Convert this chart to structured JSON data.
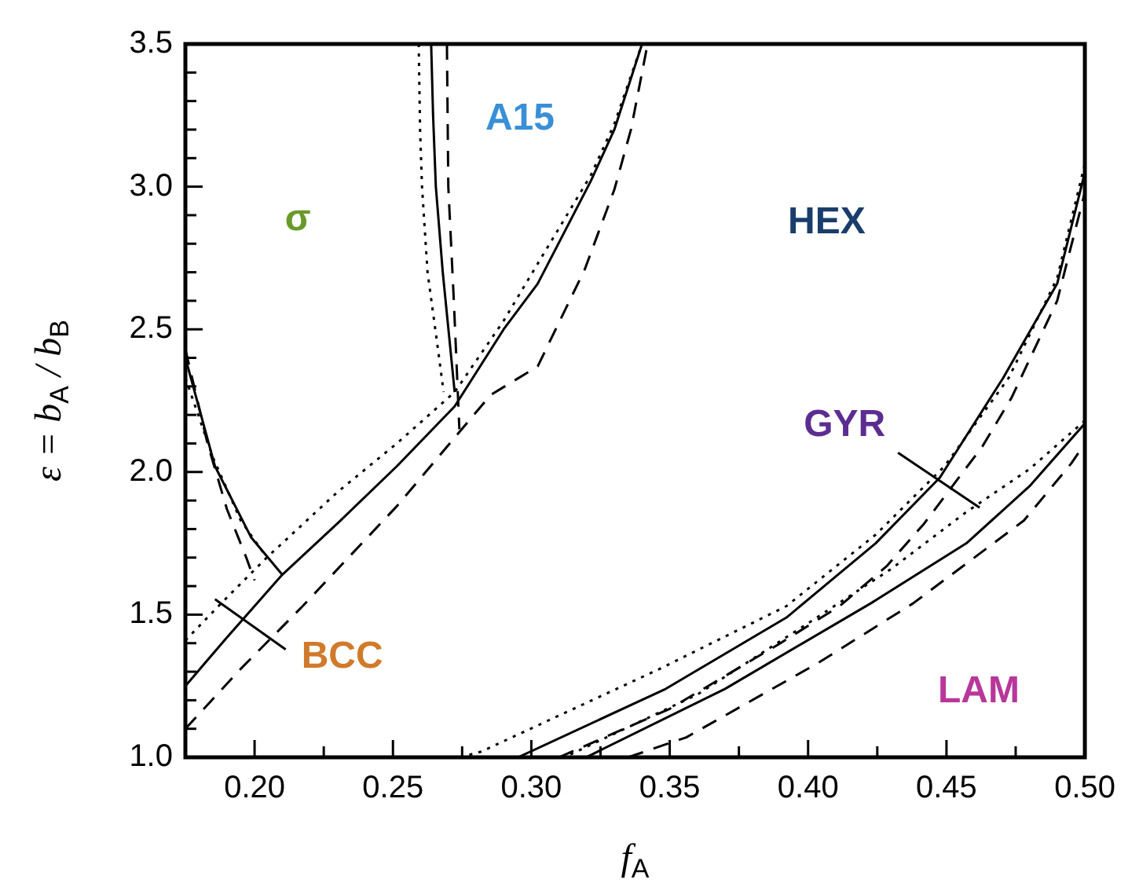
{
  "chart_data": {
    "type": "line",
    "xlabel": "f$_{A}$",
    "ylabel": "ε = b$_{A}$ / b$_{B}$",
    "xlim": [
      0.175,
      0.5
    ],
    "ylim": [
      1.0,
      3.5
    ],
    "xticks": [
      {
        "value": 0.175,
        "label": null
      },
      {
        "value": 0.2,
        "label": "0.20"
      },
      {
        "value": 0.225,
        "label": null
      },
      {
        "value": 0.25,
        "label": "0.25"
      },
      {
        "value": 0.275,
        "label": null
      },
      {
        "value": 0.3,
        "label": "0.30"
      },
      {
        "value": 0.325,
        "label": null
      },
      {
        "value": 0.35,
        "label": "0.35"
      },
      {
        "value": 0.375,
        "label": null
      },
      {
        "value": 0.4,
        "label": "0.40"
      },
      {
        "value": 0.425,
        "label": null
      },
      {
        "value": 0.45,
        "label": "0.45"
      },
      {
        "value": 0.475,
        "label": null
      },
      {
        "value": 0.5,
        "label": "0.50"
      }
    ],
    "yticks": [
      {
        "value": 1.0,
        "label": "1.0"
      },
      {
        "value": 1.1,
        "label": null
      },
      {
        "value": 1.2,
        "label": null
      },
      {
        "value": 1.3,
        "label": null
      },
      {
        "value": 1.4,
        "label": null
      },
      {
        "value": 1.5,
        "label": "1.5"
      },
      {
        "value": 1.6,
        "label": null
      },
      {
        "value": 1.7,
        "label": null
      },
      {
        "value": 1.8,
        "label": null
      },
      {
        "value": 1.9,
        "label": null
      },
      {
        "value": 2.0,
        "label": "2.0"
      },
      {
        "value": 2.1,
        "label": null
      },
      {
        "value": 2.2,
        "label": null
      },
      {
        "value": 2.3,
        "label": null
      },
      {
        "value": 2.4,
        "label": null
      },
      {
        "value": 2.5,
        "label": "2.5"
      },
      {
        "value": 2.6,
        "label": null
      },
      {
        "value": 2.7,
        "label": null
      },
      {
        "value": 2.8,
        "label": null
      },
      {
        "value": 2.9,
        "label": null
      },
      {
        "value": 3.0,
        "label": "3.0"
      },
      {
        "value": 3.1,
        "label": null
      },
      {
        "value": 3.2,
        "label": null
      },
      {
        "value": 3.3,
        "label": null
      },
      {
        "value": 3.4,
        "label": null
      },
      {
        "value": 3.5,
        "label": "3.5"
      }
    ],
    "grid": false,
    "legend": false,
    "marker": "none",
    "series": [
      {
        "line_style": "dotted",
        "color": "#000000",
        "x": [
          0.2593,
          0.2598,
          0.2605,
          0.2625,
          0.266,
          0.2683
        ],
        "values": [
          3.5,
          3.2,
          3.0,
          2.7,
          2.45,
          2.28
        ]
      },
      {
        "line_style": "solid",
        "color": "#000000",
        "x": [
          0.2638,
          0.2645,
          0.2655,
          0.268,
          0.2723
        ],
        "values": [
          3.5,
          3.25,
          3.0,
          2.7,
          2.28
        ]
      },
      {
        "line_style": "dashed",
        "color": "#000000",
        "x": [
          0.2695,
          0.27,
          0.272,
          0.274
        ],
        "values": [
          3.5,
          3.0,
          2.6,
          2.15
        ]
      },
      {
        "line_style": "dotted",
        "color": "#000000",
        "x": [
          0.175,
          0.19,
          0.2044,
          0.23,
          0.2514,
          0.2723,
          0.29,
          0.3023,
          0.3215,
          0.33,
          0.34
        ],
        "values": [
          1.41,
          1.56,
          1.7,
          1.93,
          2.1,
          2.28,
          2.53,
          2.73,
          3.04,
          3.22,
          3.5
        ]
      },
      {
        "line_style": "solid",
        "color": "#000000",
        "x": [
          0.175,
          0.19,
          0.21,
          0.23,
          0.2514,
          0.2723,
          0.29,
          0.3023,
          0.3215,
          0.33,
          0.34
        ],
        "values": [
          1.25,
          1.42,
          1.64,
          1.82,
          2.02,
          2.23,
          2.5,
          2.66,
          3.02,
          3.2,
          3.5
        ]
      },
      {
        "line_style": "dashed",
        "color": "#000000",
        "x": [
          0.175,
          0.195,
          0.2174,
          0.2514,
          0.2853,
          0.3023,
          0.3193,
          0.33,
          0.336,
          0.342
        ],
        "values": [
          1.1,
          1.31,
          1.53,
          1.88,
          2.27,
          2.37,
          2.71,
          2.99,
          3.2,
          3.5
        ]
      },
      {
        "line_style": "dotted",
        "color": "#000000",
        "x": [
          0.175,
          0.185,
          0.195,
          0.2044
        ],
        "values": [
          2.33,
          2.05,
          1.83,
          1.7
        ]
      },
      {
        "line_style": "solid",
        "color": "#000000",
        "x": [
          0.175,
          0.1857,
          0.1988,
          0.21
        ],
        "values": [
          2.4,
          2.02,
          1.77,
          1.64
        ]
      },
      {
        "line_style": "dashed",
        "color": "#000000",
        "x": [
          0.175,
          0.183,
          0.19,
          0.197,
          0.2
        ],
        "values": [
          2.43,
          2.1,
          1.87,
          1.7,
          1.62
        ]
      },
      {
        "line_style": "dotted",
        "color": "#000000",
        "x": [
          0.2743,
          0.2819,
          0.3464,
          0.3922,
          0.4244,
          0.4493,
          0.4725,
          0.49,
          0.5
        ],
        "values": [
          1.0,
          1.02,
          1.31,
          1.53,
          1.78,
          2.02,
          2.33,
          2.68,
          3.08
        ]
      },
      {
        "line_style": "solid",
        "color": "#000000",
        "x": [
          0.2952,
          0.3486,
          0.3922,
          0.4244,
          0.4476,
          0.4705,
          0.49,
          0.5
        ],
        "values": [
          1.0,
          1.24,
          1.49,
          1.75,
          1.98,
          2.33,
          2.66,
          3.05
        ]
      },
      {
        "line_style": "dashed",
        "color": "#000000",
        "x": [
          0.31,
          0.35,
          0.39,
          0.4114,
          0.4284,
          0.442,
          0.463,
          0.4735,
          0.49,
          0.5
        ],
        "values": [
          1.0,
          1.17,
          1.4,
          1.53,
          1.67,
          1.82,
          2.09,
          2.26,
          2.6,
          2.98
        ]
      },
      {
        "line_style": "dotted",
        "color": "#000000",
        "x": [
          0.3141,
          0.36,
          0.4,
          0.43,
          0.4572,
          0.48,
          0.5
        ],
        "values": [
          1.01,
          1.22,
          1.47,
          1.66,
          1.86,
          2.01,
          2.18
        ]
      },
      {
        "line_style": "solid",
        "color": "#000000",
        "x": [
          0.3198,
          0.37,
          0.4227,
          0.4572,
          0.48,
          0.5
        ],
        "values": [
          1.0,
          1.24,
          1.54,
          1.75,
          1.95,
          2.17
        ]
      },
      {
        "line_style": "dashed",
        "color": "#000000",
        "x": [
          0.335,
          0.356,
          0.4035,
          0.438,
          0.478,
          0.4951,
          0.5
        ],
        "values": [
          1.0,
          1.07,
          1.33,
          1.54,
          1.83,
          2.03,
          2.1
        ]
      }
    ],
    "annotations": [
      "σ",
      "A15",
      "HEX",
      {
        "text": "GYR",
        "x": 0.462,
        "y": 1.875
      },
      "LAM",
      {
        "text": "BCC",
        "x": 0.1857,
        "y": 1.554
      }
    ]
  }
}
